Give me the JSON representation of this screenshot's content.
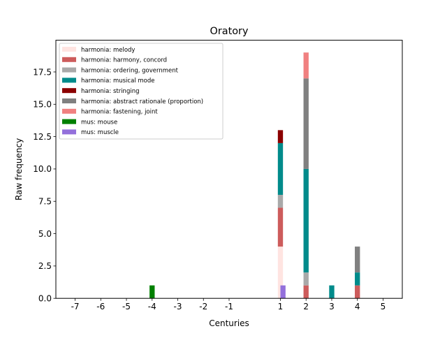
{
  "chart_data": {
    "type": "bar",
    "stacked": true,
    "title": "Oratory",
    "xlabel": "Centuries",
    "ylabel": "Raw frequency",
    "xlim": [
      -7.75,
      5.75
    ],
    "ylim": [
      0,
      19.95
    ],
    "bar_width": 0.2,
    "x_ticks": [
      -7,
      -6,
      -5,
      -4,
      -3,
      -2,
      -1,
      1,
      2,
      3,
      4,
      5
    ],
    "x_tick_labels": [
      "-7",
      "-6",
      "-5",
      "-4",
      "-3",
      "-2",
      "-1",
      "1",
      "2",
      "3",
      "4",
      "5"
    ],
    "y_ticks": [
      0,
      2.5,
      5,
      7.5,
      10,
      12.5,
      15,
      17.5
    ],
    "y_tick_labels": [
      "0.0",
      "2.5",
      "5.0",
      "7.5",
      "10.0",
      "12.5",
      "15.0",
      "17.5"
    ],
    "grid": false,
    "legend_position": "top-left",
    "categories": [
      -4,
      1,
      2,
      3,
      4
    ],
    "series": [
      {
        "name": "harmonia: melody",
        "color": "#ffe4e1",
        "stack": "harmonia",
        "values": [
          0,
          4,
          0,
          0,
          0
        ]
      },
      {
        "name": "harmonia: harmony, concord",
        "color": "#cd5c5c",
        "stack": "harmonia",
        "values": [
          0,
          3,
          1,
          0,
          1
        ]
      },
      {
        "name": "harmonia: ordering, government",
        "color": "#a9a9a9",
        "stack": "harmonia",
        "values": [
          0,
          1,
          1,
          0,
          0
        ]
      },
      {
        "name": "harmonia: musical mode",
        "color": "#008b8b",
        "stack": "harmonia",
        "values": [
          0,
          4,
          8,
          1,
          1
        ]
      },
      {
        "name": "harmonia: stringing",
        "color": "#8b0000",
        "stack": "harmonia",
        "values": [
          0,
          1,
          0,
          0,
          0
        ]
      },
      {
        "name": "harmonia: abstract rationale (proportion)",
        "color": "#808080",
        "stack": "harmonia",
        "values": [
          0,
          0,
          7,
          0,
          2
        ]
      },
      {
        "name": "harmonia: fastening, joint",
        "color": "#f08080",
        "stack": "harmonia",
        "values": [
          0,
          0,
          2,
          0,
          0
        ]
      },
      {
        "name": "mus: mouse",
        "color": "#008000",
        "stack": "mus",
        "values": [
          1,
          0,
          0,
          0,
          0
        ]
      },
      {
        "name": "mus: muscle",
        "color": "#9370db",
        "stack": "mus",
        "values": [
          0,
          1,
          0,
          0,
          0
        ]
      }
    ]
  }
}
